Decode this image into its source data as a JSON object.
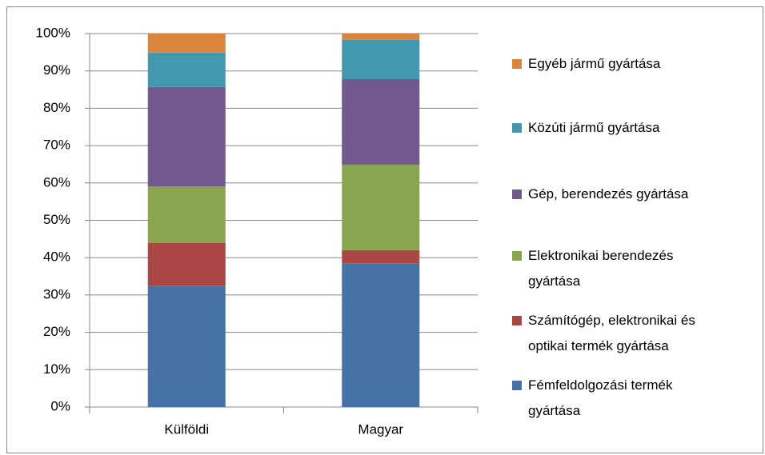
{
  "chart_data": {
    "type": "stacked_bar",
    "categories": [
      "Külföldi",
      "Magyar"
    ],
    "series": [
      {
        "name": "Fémfeldolgozási termék gyártása",
        "color": "#4572a7",
        "values": [
          32.5,
          38.5
        ]
      },
      {
        "name": "Számítógép, elektronikai és optikai termék gyártása",
        "color": "#aa4643",
        "values": [
          11.4,
          3.5
        ]
      },
      {
        "name": "Elektronikai berendezés gyártása",
        "color": "#89a54e",
        "values": [
          15.2,
          22.9
        ]
      },
      {
        "name": "Gép, berendezés gyártása",
        "color": "#71588f",
        "values": [
          26.6,
          22.9
        ]
      },
      {
        "name": "Közúti jármű gyártása",
        "color": "#4198af",
        "values": [
          9.2,
          10.5
        ]
      },
      {
        "name": "Egyéb jármű gyártása",
        "color": "#db843d",
        "values": [
          5.1,
          1.7
        ]
      }
    ],
    "ylim": [
      0,
      100
    ],
    "yticks": [
      {
        "value": 0,
        "label": "0%"
      },
      {
        "value": 10,
        "label": "10%"
      },
      {
        "value": 20,
        "label": "20%"
      },
      {
        "value": 30,
        "label": "30%"
      },
      {
        "value": 40,
        "label": "40%"
      },
      {
        "value": 50,
        "label": "50%"
      },
      {
        "value": 60,
        "label": "60%"
      },
      {
        "value": 70,
        "label": "70%"
      },
      {
        "value": 80,
        "label": "80%"
      },
      {
        "value": 90,
        "label": "90%"
      },
      {
        "value": 100,
        "label": "100%"
      }
    ],
    "grid": true,
    "legend": "right"
  }
}
